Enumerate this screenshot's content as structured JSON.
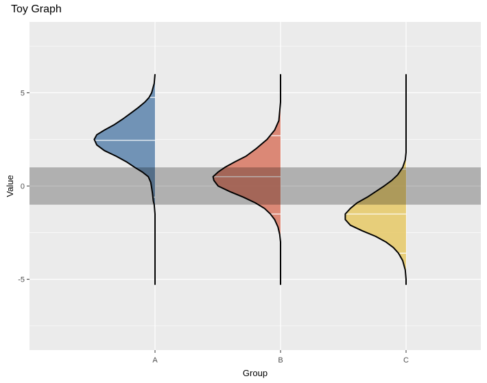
{
  "chart_data": {
    "type": "half-violin",
    "title": "Toy Graph",
    "xlabel": "Group",
    "ylabel": "Value",
    "categories": [
      "A",
      "B",
      "C"
    ],
    "ylim": [
      -8.8,
      8.8
    ],
    "yticks": [
      -5,
      0,
      5
    ],
    "grid": true,
    "band": {
      "ymin": -1,
      "ymax": 1,
      "color": "#000000",
      "opacity": 0.25
    },
    "series": [
      {
        "category": "A",
        "fill": "#4e7aa7",
        "range": [
          -5.3,
          6.0
        ],
        "quantiles": [
          -0.6,
          2.45,
          4.75
        ],
        "profile": [
          [
            6.0,
            0.0
          ],
          [
            5.5,
            0.01
          ],
          [
            5.0,
            0.04
          ],
          [
            4.75,
            0.07
          ],
          [
            4.5,
            0.12
          ],
          [
            4.2,
            0.2
          ],
          [
            3.9,
            0.29
          ],
          [
            3.6,
            0.38
          ],
          [
            3.3,
            0.48
          ],
          [
            3.0,
            0.6
          ],
          [
            2.75,
            0.69
          ],
          [
            2.5,
            0.72
          ],
          [
            2.2,
            0.69
          ],
          [
            1.9,
            0.6
          ],
          [
            1.6,
            0.46
          ],
          [
            1.3,
            0.34
          ],
          [
            1.0,
            0.24
          ],
          [
            0.75,
            0.15
          ],
          [
            0.5,
            0.08
          ],
          [
            0.2,
            0.05
          ],
          [
            -0.1,
            0.04
          ],
          [
            -0.4,
            0.03
          ],
          [
            -0.8,
            0.02
          ],
          [
            -1.0,
            0.01
          ],
          [
            -1.5,
            0.0
          ],
          [
            -5.3,
            0.0
          ]
        ]
      },
      {
        "category": "B",
        "fill": "#d66b55",
        "range": [
          -5.3,
          6.0
        ],
        "quantiles": [
          -1.5,
          0.5,
          2.7
        ],
        "profile": [
          [
            6.0,
            0.0
          ],
          [
            4.5,
            0.0
          ],
          [
            3.5,
            0.02
          ],
          [
            3.0,
            0.07
          ],
          [
            2.5,
            0.16
          ],
          [
            2.0,
            0.29
          ],
          [
            1.6,
            0.41
          ],
          [
            1.3,
            0.54
          ],
          [
            1.0,
            0.66
          ],
          [
            0.75,
            0.74
          ],
          [
            0.5,
            0.8
          ],
          [
            0.3,
            0.79
          ],
          [
            0.0,
            0.74
          ],
          [
            -0.3,
            0.6
          ],
          [
            -0.6,
            0.44
          ],
          [
            -0.9,
            0.3
          ],
          [
            -1.2,
            0.19
          ],
          [
            -1.5,
            0.12
          ],
          [
            -1.8,
            0.07
          ],
          [
            -2.2,
            0.03
          ],
          [
            -2.6,
            0.01
          ],
          [
            -3.0,
            0.0
          ],
          [
            -5.3,
            0.0
          ]
        ]
      },
      {
        "category": "C",
        "fill": "#e6c55a",
        "range": [
          -5.3,
          6.0
        ],
        "quantiles": [
          -3.6,
          -1.5,
          0.9
        ],
        "profile": [
          [
            6.0,
            0.0
          ],
          [
            1.8,
            0.0
          ],
          [
            1.4,
            0.01
          ],
          [
            1.0,
            0.04
          ],
          [
            0.6,
            0.1
          ],
          [
            0.3,
            0.17
          ],
          [
            0.0,
            0.26
          ],
          [
            -0.3,
            0.36
          ],
          [
            -0.6,
            0.46
          ],
          [
            -0.9,
            0.58
          ],
          [
            -1.2,
            0.66
          ],
          [
            -1.5,
            0.72
          ],
          [
            -1.8,
            0.72
          ],
          [
            -2.1,
            0.66
          ],
          [
            -2.4,
            0.52
          ],
          [
            -2.7,
            0.36
          ],
          [
            -3.0,
            0.24
          ],
          [
            -3.3,
            0.15
          ],
          [
            -3.6,
            0.09
          ],
          [
            -4.0,
            0.04
          ],
          [
            -4.5,
            0.01
          ],
          [
            -5.0,
            0.0
          ],
          [
            -5.3,
            0.0
          ]
        ]
      }
    ]
  }
}
